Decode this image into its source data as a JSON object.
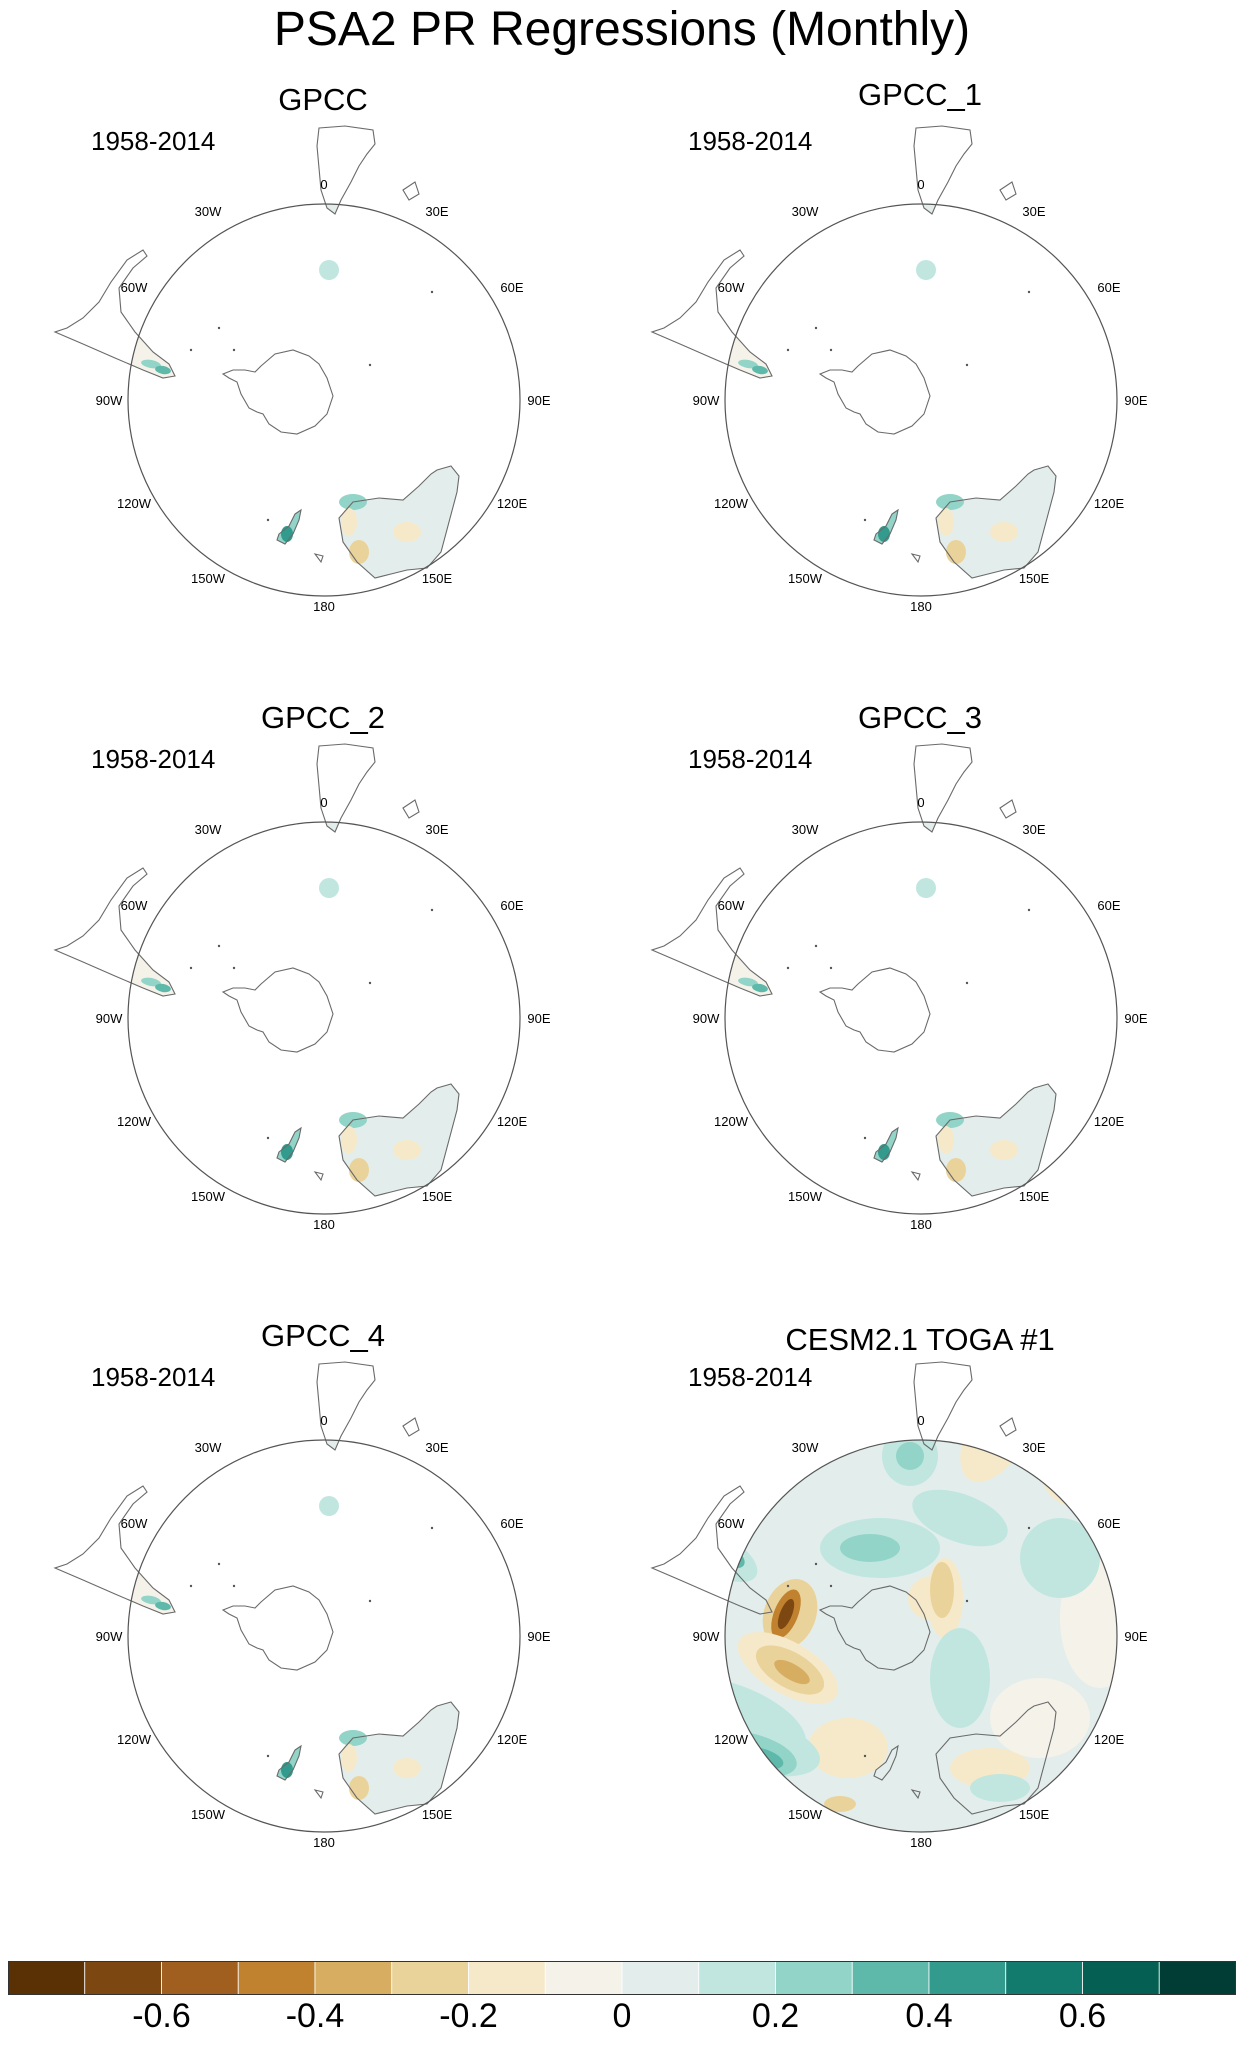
{
  "title": "PSA2 PR Regressions (Monthly)",
  "panels": [
    {
      "title": "GPCC",
      "years": "1958-2014",
      "variant": "obs",
      "strength": 1.0
    },
    {
      "title": "GPCC_1",
      "years": "1958-2014",
      "variant": "obs",
      "strength": 0.9
    },
    {
      "title": "GPCC_2",
      "years": "1958-2014",
      "variant": "obs",
      "strength": 0.95
    },
    {
      "title": "GPCC_3",
      "years": "1958-2014",
      "variant": "obs",
      "strength": 1.05
    },
    {
      "title": "GPCC_4",
      "years": "1958-2014",
      "variant": "obs",
      "strength": 0.7
    },
    {
      "title": "CESM2.1 TOGA #1",
      "years": "1958-2014",
      "variant": "model",
      "strength": 1.0
    }
  ],
  "longitude_labels": [
    "0",
    "30E",
    "60E",
    "90E",
    "120E",
    "150E",
    "180",
    "150W",
    "120W",
    "90W",
    "60W",
    "30W"
  ],
  "colorbar": {
    "colors": [
      "#5a3005",
      "#7d4711",
      "#a05f1e",
      "#c0822f",
      "#d7ad61",
      "#ead39b",
      "#f6e9c9",
      "#f5f2ea",
      "#e3eeec",
      "#c1e6e0",
      "#92d4c8",
      "#5fb9ab",
      "#329b8d",
      "#137b6d",
      "#065f53",
      "#013d34"
    ],
    "labels": [
      "-0.6",
      "-0.4",
      "-0.2",
      "0",
      "0.2",
      "0.4",
      "0.6"
    ],
    "label_values": [
      -0.6,
      -0.4,
      -0.2,
      0,
      0.2,
      0.4,
      0.6
    ],
    "min": -0.8,
    "max": 0.8
  }
}
